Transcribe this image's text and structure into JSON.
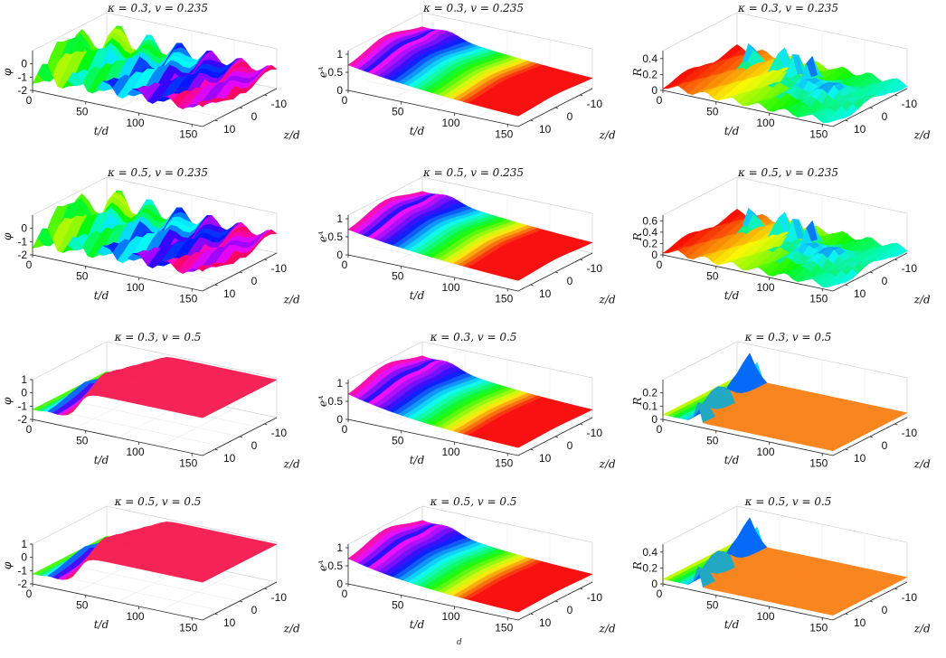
{
  "figure_caption": "d",
  "chart_data": [
    {
      "type": "surface",
      "panel": "phi",
      "title": "κ = 0.3, v = 0.235",
      "zlabel": "φ",
      "xlabel": "t/d",
      "ylabel": "z/d",
      "x_ticks": [
        "0",
        "50",
        "100",
        "150"
      ],
      "y_ticks": [
        "-10",
        "0",
        "10"
      ],
      "z_ticks": [
        "0",
        "-1",
        "-2"
      ],
      "zlim": [
        -2,
        1
      ],
      "xlim": [
        0,
        160
      ],
      "ylim": [
        -15,
        15
      ],
      "grid": true
    },
    {
      "type": "surface",
      "panel": "ea",
      "title": "κ = 0.3, v = 0.235",
      "zlabel": "eᴬ",
      "xlabel": "t/d",
      "ylabel": "z/d",
      "x_ticks": [
        "0",
        "50",
        "100",
        "150"
      ],
      "y_ticks": [
        "-10",
        "0",
        "10"
      ],
      "z_ticks": [
        "0",
        "0.5",
        "1"
      ],
      "zlim": [
        0,
        1.1
      ],
      "xlim": [
        0,
        160
      ],
      "ylim": [
        -15,
        15
      ],
      "grid": true
    },
    {
      "type": "surface",
      "panel": "R",
      "title": "κ = 0.3, v = 0.235",
      "zlabel": "R",
      "xlabel": "t/d",
      "ylabel": "z/d",
      "x_ticks": [
        "0",
        "50",
        "100",
        "150"
      ],
      "y_ticks": [
        "-10",
        "0",
        "10"
      ],
      "z_ticks": [
        "0",
        "0.2",
        "0.4"
      ],
      "zlim": [
        0,
        0.5
      ],
      "xlim": [
        0,
        160
      ],
      "ylim": [
        -15,
        15
      ],
      "grid": true
    },
    {
      "type": "surface",
      "panel": "phi",
      "title": "κ = 0.5, v = 0.235",
      "zlabel": "φ",
      "xlabel": "t/d",
      "ylabel": "z/d",
      "x_ticks": [
        "0",
        "50",
        "100",
        "150"
      ],
      "y_ticks": [
        "-10",
        "0",
        "10"
      ],
      "z_ticks": [
        "0",
        "-1",
        "-2"
      ],
      "zlim": [
        -2,
        1
      ],
      "xlim": [
        0,
        160
      ],
      "ylim": [
        -15,
        15
      ],
      "grid": true
    },
    {
      "type": "surface",
      "panel": "ea",
      "title": "κ = 0.5, v = 0.235",
      "zlabel": "eᴬ",
      "xlabel": "t/d",
      "ylabel": "z/d",
      "x_ticks": [
        "0",
        "50",
        "100",
        "150"
      ],
      "y_ticks": [
        "-10",
        "0",
        "10"
      ],
      "z_ticks": [
        "0",
        "0.5",
        "1"
      ],
      "zlim": [
        0,
        1.1
      ],
      "xlim": [
        0,
        160
      ],
      "ylim": [
        -15,
        15
      ],
      "grid": true
    },
    {
      "type": "surface",
      "panel": "R",
      "title": "κ = 0.5, v = 0.235",
      "zlabel": "R",
      "xlabel": "t/d",
      "ylabel": "z/d",
      "x_ticks": [
        "0",
        "50",
        "100",
        "150"
      ],
      "y_ticks": [
        "-10",
        "0",
        "10"
      ],
      "z_ticks": [
        "0",
        "0.2",
        "0.4",
        "0.6"
      ],
      "zlim": [
        0,
        0.7
      ],
      "xlim": [
        0,
        160
      ],
      "ylim": [
        -15,
        15
      ],
      "grid": true
    },
    {
      "type": "surface",
      "panel": "phi",
      "title": "κ = 0.3, v = 0.5",
      "zlabel": "φ",
      "xlabel": "t/d",
      "ylabel": "z/d",
      "x_ticks": [
        "0",
        "50",
        "100",
        "150"
      ],
      "y_ticks": [
        "-10",
        "0",
        "10"
      ],
      "z_ticks": [
        "1",
        "0",
        "-1",
        "-2"
      ],
      "zlim": [
        -2,
        1
      ],
      "xlim": [
        0,
        160
      ],
      "ylim": [
        -15,
        15
      ],
      "grid": true
    },
    {
      "type": "surface",
      "panel": "ea",
      "title": "κ = 0.3, v = 0.5",
      "zlabel": "eᴬ",
      "xlabel": "t/d",
      "ylabel": "z/d",
      "x_ticks": [
        "0",
        "50",
        "100",
        "150"
      ],
      "y_ticks": [
        "-10",
        "0",
        "10"
      ],
      "z_ticks": [
        "0",
        "0.5",
        "1"
      ],
      "zlim": [
        0,
        1.1
      ],
      "xlim": [
        0,
        160
      ],
      "ylim": [
        -15,
        15
      ],
      "grid": true
    },
    {
      "type": "surface",
      "panel": "R",
      "title": "κ = 0.3, v = 0.5",
      "zlabel": "R",
      "xlabel": "t/d",
      "ylabel": "z/d",
      "x_ticks": [
        "0",
        "50",
        "100",
        "150"
      ],
      "y_ticks": [
        "-10",
        "0",
        "10"
      ],
      "z_ticks": [
        "0",
        "0.1",
        "0.2"
      ],
      "zlim": [
        0,
        0.3
      ],
      "xlim": [
        0,
        160
      ],
      "ylim": [
        -15,
        15
      ],
      "grid": true
    },
    {
      "type": "surface",
      "panel": "phi",
      "title": "κ = 0.5, v = 0.5",
      "zlabel": "φ",
      "xlabel": "t/d",
      "ylabel": "z/d",
      "x_ticks": [
        "0",
        "50",
        "100",
        "150"
      ],
      "y_ticks": [
        "-10",
        "0",
        "10"
      ],
      "z_ticks": [
        "1",
        "0",
        "-1",
        "-2"
      ],
      "zlim": [
        -2,
        1
      ],
      "xlim": [
        0,
        160
      ],
      "ylim": [
        -15,
        15
      ],
      "grid": true
    },
    {
      "type": "surface",
      "panel": "ea",
      "title": "κ = 0.5, v = 0.5",
      "zlabel": "eᴬ",
      "xlabel": "t/d",
      "ylabel": "z/d",
      "x_ticks": [
        "0",
        "50",
        "100",
        "150"
      ],
      "y_ticks": [
        "-10",
        "0",
        "10"
      ],
      "z_ticks": [
        "0",
        "0.5",
        "1"
      ],
      "zlim": [
        0,
        1.1
      ],
      "xlim": [
        0,
        160
      ],
      "ylim": [
        -15,
        15
      ],
      "grid": true
    },
    {
      "type": "surface",
      "panel": "R",
      "title": "κ = 0.5, v = 0.5",
      "zlabel": "R",
      "xlabel": "t/d",
      "ylabel": "z/d",
      "x_ticks": [
        "0",
        "50",
        "100",
        "150"
      ],
      "y_ticks": [
        "-10",
        "0",
        "10"
      ],
      "z_ticks": [
        "0",
        "0.2",
        "0.4"
      ],
      "zlim": [
        0,
        0.5
      ],
      "xlim": [
        0,
        160
      ],
      "ylim": [
        -15,
        15
      ],
      "grid": true
    }
  ]
}
